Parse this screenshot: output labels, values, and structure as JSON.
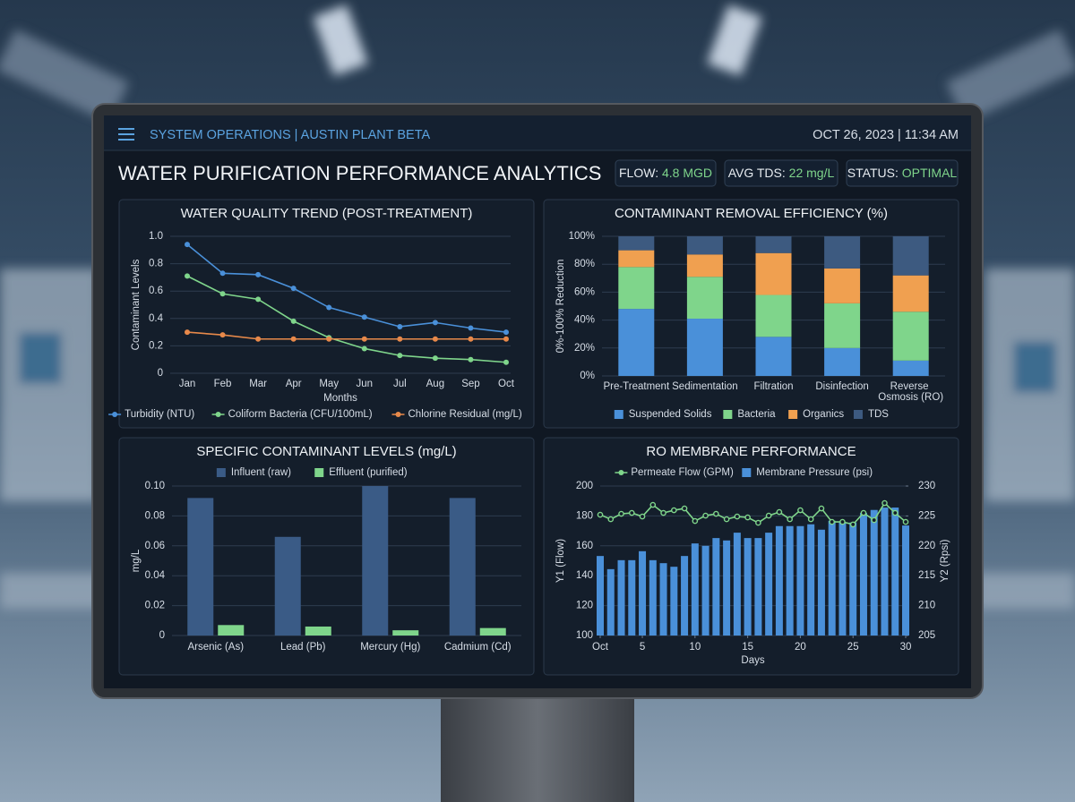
{
  "header": {
    "nav": "SYSTEM OPERATIONS | AUSTIN PLANT BETA",
    "datetime": "OCT 26, 2023 | 11:34 AM",
    "title": "WATER PURIFICATION PERFORMANCE ANALYTICS"
  },
  "kpis": [
    {
      "label": "FLOW:",
      "value": "4.8 MGD"
    },
    {
      "label": "AVG TDS:",
      "value": "22 mg/L"
    },
    {
      "label": "STATUS:",
      "value": "OPTIMAL"
    }
  ],
  "chart_data": [
    {
      "type": "line",
      "title": "WATER QUALITY TREND (POST-TREATMENT)",
      "xlabel": "Months",
      "ylabel": "Contaminant Levels",
      "categories": [
        "Jan",
        "Feb",
        "Mar",
        "Apr",
        "May",
        "Jun",
        "Jul",
        "Aug",
        "Sep",
        "Oct"
      ],
      "ylim": [
        0,
        1
      ],
      "yticks": [
        0,
        0.2,
        0.4,
        0.6,
        0.8,
        {
          "value": 1,
          "label": "1.0"
        }
      ],
      "grid": true,
      "legend": "bottom",
      "series": [
        {
          "name": "Turbidity (NTU)",
          "color": "#4a90d9",
          "values": [
            0.94,
            0.73,
            0.72,
            0.62,
            0.48,
            0.41,
            0.34,
            0.37,
            0.33,
            0.3
          ]
        },
        {
          "name": "Coliform Bacteria (CFU/100mL)",
          "color": "#7fd58b",
          "values": [
            0.71,
            0.58,
            0.54,
            0.38,
            0.26,
            0.18,
            0.13,
            0.11,
            0.1,
            0.08
          ]
        },
        {
          "name": "Chlorine Residual (mg/L)",
          "color": "#e8894a",
          "values": [
            0.3,
            0.28,
            0.25,
            0.25,
            0.25,
            0.25,
            0.25,
            0.25,
            0.25,
            0.25
          ]
        }
      ]
    },
    {
      "type": "stacked_bar",
      "title": "CONTAMINANT REMOVAL EFFICIENCY (%)",
      "ylabel": "0%-100% Reduction",
      "categories": [
        "Pre-Treatment",
        "Sedimentation",
        "Filtration",
        "Disinfection",
        "Reverse Osmosis (RO)"
      ],
      "ylim": [
        0,
        100
      ],
      "yticks": [
        {
          "value": 0,
          "label": "0%"
        },
        {
          "value": 20,
          "label": "20%"
        },
        {
          "value": 40,
          "label": "40%"
        },
        {
          "value": 60,
          "label": "60%"
        },
        {
          "value": 80,
          "label": "80%"
        },
        {
          "value": 100,
          "label": "100%"
        }
      ],
      "grid": true,
      "legend": "bottom",
      "series": [
        {
          "name": "Suspended Solids",
          "color": "#4a90d9",
          "values": [
            48,
            41,
            28,
            20,
            11
          ]
        },
        {
          "name": "Bacteria",
          "color": "#7fd58b",
          "values": [
            30,
            30,
            30,
            32,
            35
          ]
        },
        {
          "name": "Organics",
          "color": "#f0a050",
          "values": [
            12,
            16,
            30,
            25,
            26
          ]
        },
        {
          "name": "TDS",
          "color": "#3d5a80",
          "values": [
            10,
            13,
            12,
            23,
            28
          ]
        }
      ]
    },
    {
      "type": "bar",
      "title": "SPECIFIC CONTAMINANT LEVELS (mg/L)",
      "ylabel": "mg/L",
      "categories": [
        "Arsenic (As)",
        "Lead (Pb)",
        "Mercury (Hg)",
        "Cadmium (Cd)"
      ],
      "ylim": [
        0,
        0.1
      ],
      "yticks": [
        0,
        0.02,
        0.04,
        0.06,
        0.08,
        {
          "value": 0.1,
          "label": "0.10"
        }
      ],
      "grid": true,
      "legend": "top",
      "series": [
        {
          "name": "Influent (raw)",
          "color": "#3a5b86",
          "values": [
            0.092,
            0.066,
            0.1,
            0.092
          ]
        },
        {
          "name": "Effluent (purified)",
          "color": "#7fd58b",
          "values": [
            0.007,
            0.006,
            0.0035,
            0.005
          ]
        }
      ]
    },
    {
      "type": "bar_line",
      "title": "RO MEMBRANE PERFORMANCE",
      "xlabel": "Days",
      "ylabel": "Y1 (Flow)",
      "y2label": "Y2 (Rpsi)",
      "x": [
        1,
        2,
        3,
        4,
        5,
        6,
        7,
        8,
        9,
        10,
        11,
        12,
        13,
        14,
        15,
        16,
        17,
        18,
        19,
        20,
        21,
        22,
        23,
        24,
        25,
        26,
        27,
        28,
        29,
        30
      ],
      "xlim": [
        1,
        30
      ],
      "xticks": [
        {
          "value": 1,
          "label": "Oct"
        },
        5,
        10,
        15,
        20,
        25,
        30
      ],
      "ylim": [
        100,
        200
      ],
      "yticks": [
        100,
        120,
        140,
        160,
        180,
        200
      ],
      "y2lim": [
        205,
        230
      ],
      "y2ticks": [
        205,
        210,
        215,
        220,
        225,
        230
      ],
      "grid": true,
      "legend": "top",
      "series": [
        {
          "name": "Permeate Flow (GPM)",
          "type": "line",
          "color": "#7fd58b",
          "values": [
            180.8,
            177.8,
            181.4,
            182,
            179.6,
            187.4,
            182,
            183.8,
            185,
            176.6,
            180.2,
            181.4,
            177.8,
            179.6,
            179,
            175.4,
            180.2,
            182.6,
            177.8,
            183.8,
            177.8,
            185,
            176,
            176,
            174.3,
            182,
            177.2,
            188.6,
            182,
            176
          ]
        },
        {
          "name": "Membrane Pressure (psi)",
          "type": "bar",
          "axis": "y2",
          "color": "#4a90d9",
          "values": [
            218.3,
            216.1,
            217.6,
            217.6,
            219.1,
            217.6,
            217.1,
            216.5,
            218.3,
            220.4,
            220,
            221.3,
            220.9,
            222.2,
            221.3,
            221.3,
            222.2,
            223.3,
            223.3,
            223.3,
            223.6,
            222.7,
            224.2,
            223.9,
            223.9,
            225.5,
            226,
            226.4,
            226.4,
            223.4
          ]
        }
      ]
    }
  ]
}
